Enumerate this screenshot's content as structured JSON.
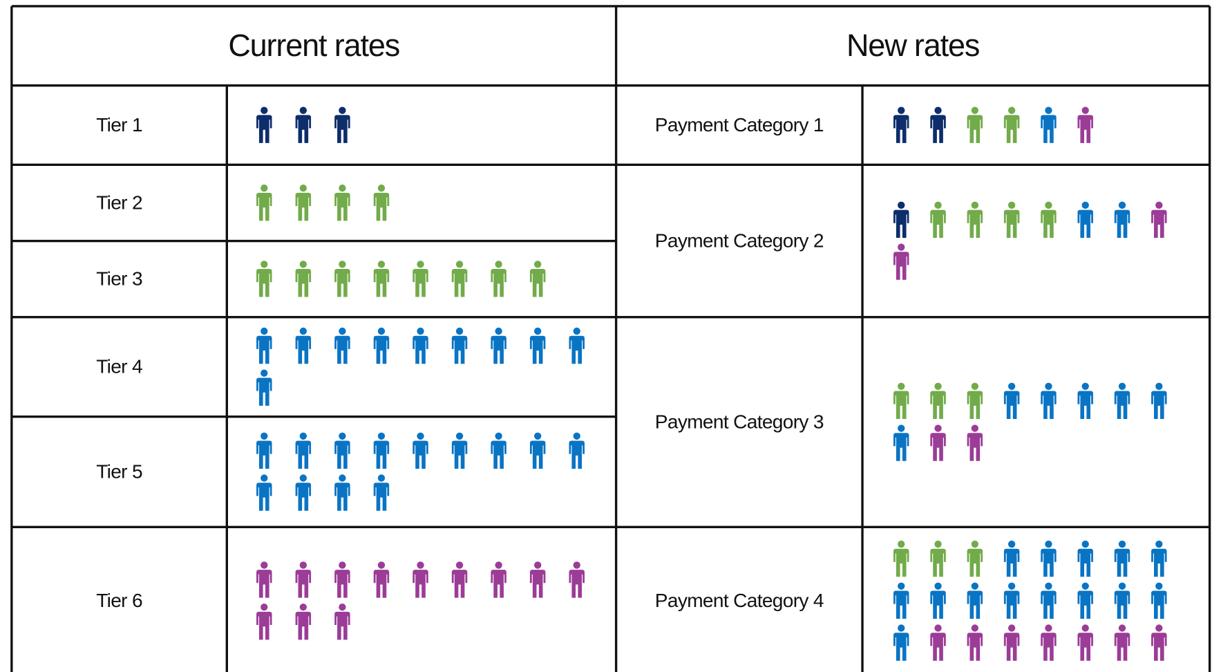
{
  "current": {
    "title": "Current rates",
    "rows": [
      {
        "label": "Tier 1",
        "groups": [
          {
            "color": "#0d2d6b",
            "count": 3
          }
        ]
      },
      {
        "label": "Tier 2",
        "groups": [
          {
            "color": "#72ab4a",
            "count": 4
          }
        ]
      },
      {
        "label": "Tier 3",
        "groups": [
          {
            "color": "#72ab4a",
            "count": 8
          }
        ]
      },
      {
        "label": "Tier 4",
        "groups": [
          {
            "color": "#0a74c4",
            "count": 10
          }
        ]
      },
      {
        "label": "Tier 5",
        "groups": [
          {
            "color": "#0a74c4",
            "count": 13
          }
        ]
      },
      {
        "label": "Tier 6",
        "groups": [
          {
            "color": "#9b3c97",
            "count": 12
          }
        ]
      }
    ]
  },
  "new": {
    "title": "New rates",
    "rows": [
      {
        "label": "Payment Category 1",
        "groups": [
          {
            "color": "#0d2d6b",
            "count": 2
          },
          {
            "color": "#72ab4a",
            "count": 2
          },
          {
            "color": "#0a74c4",
            "count": 1
          },
          {
            "color": "#9b3c97",
            "count": 1
          }
        ]
      },
      {
        "label": "Payment Category 2",
        "groups": [
          {
            "color": "#0d2d6b",
            "count": 1
          },
          {
            "color": "#72ab4a",
            "count": 4
          },
          {
            "color": "#0a74c4",
            "count": 2
          },
          {
            "color": "#9b3c97",
            "count": 2
          }
        ]
      },
      {
        "label": "Payment Category 3",
        "groups": [
          {
            "color": "#72ab4a",
            "count": 3
          },
          {
            "color": "#0a74c4",
            "count": 6
          },
          {
            "color": "#9b3c97",
            "count": 2
          }
        ]
      },
      {
        "label": "Payment Category 4",
        "groups": [
          {
            "color": "#72ab4a",
            "count": 3
          },
          {
            "color": "#0a74c4",
            "count": 14
          },
          {
            "color": "#9b3c97",
            "count": 7
          }
        ]
      }
    ]
  }
}
